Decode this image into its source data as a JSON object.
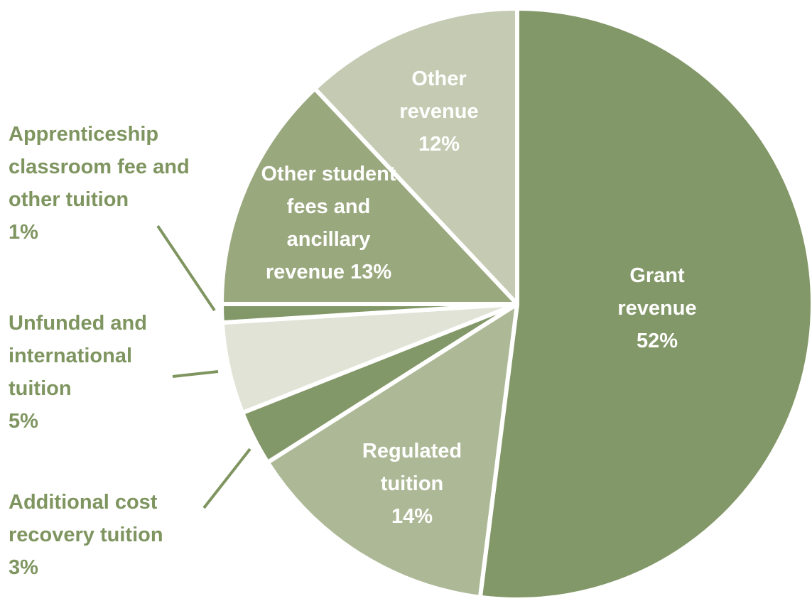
{
  "chart_data": {
    "type": "pie",
    "categories": [
      "Grant revenue",
      "Regulated tuition",
      "Additional cost recovery tuition",
      "Unfunded and international tuition",
      "Apprenticeship classroom fee and other tuition",
      "Other student fees and ancillary revenue",
      "Other revenue"
    ],
    "values": [
      52,
      14,
      3,
      5,
      1,
      13,
      12
    ],
    "value_labels": [
      "52%",
      "14%",
      "3%",
      "5%",
      "1%",
      "13%",
      "12%"
    ],
    "colors": [
      "#839868",
      "#adb996",
      "#839868",
      "#e0e3d6",
      "#839868",
      "#9aa87e",
      "#c5cbb3"
    ]
  }
}
